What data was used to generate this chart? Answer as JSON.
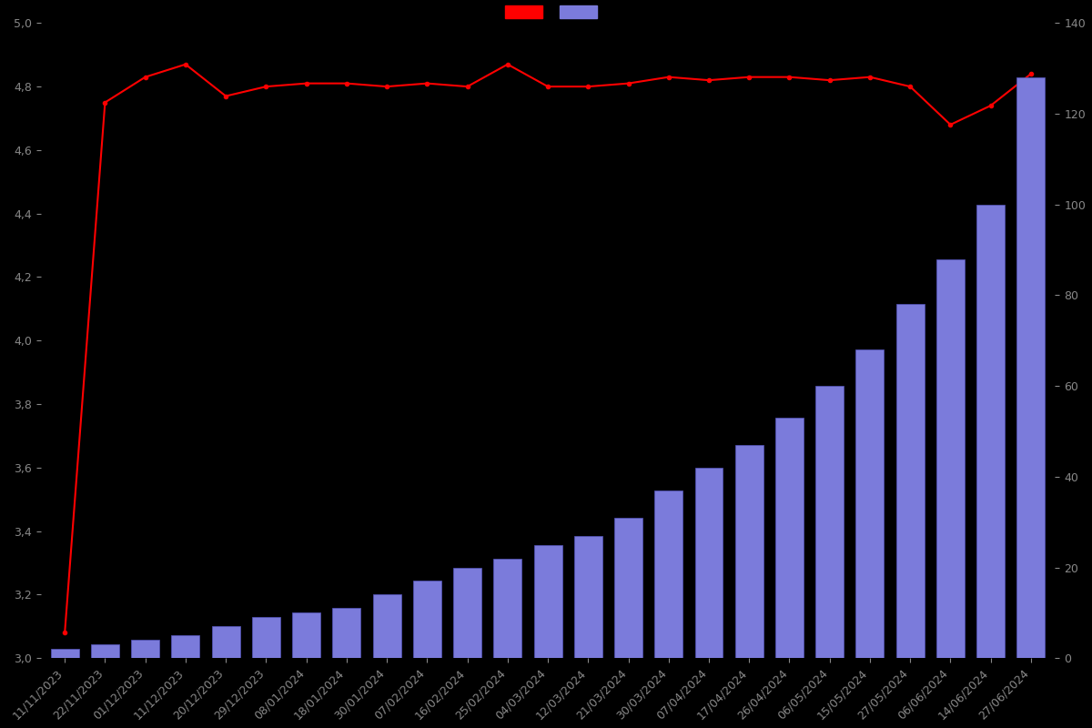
{
  "dates": [
    "11/11/2023",
    "22/11/2023",
    "01/12/2023",
    "11/12/2023",
    "20/12/2023",
    "29/12/2023",
    "08/01/2024",
    "18/01/2024",
    "30/01/2024",
    "07/02/2024",
    "16/02/2024",
    "25/02/2024",
    "04/03/2024",
    "12/03/2024",
    "21/03/2024",
    "30/03/2024",
    "07/04/2024",
    "17/04/2024",
    "26/04/2024",
    "06/05/2024",
    "15/05/2024",
    "27/05/2024",
    "06/06/2024",
    "14/06/2024",
    "27/06/2024"
  ],
  "bar_values": [
    2,
    3,
    4,
    5,
    7,
    9,
    10,
    11,
    14,
    17,
    20,
    22,
    25,
    27,
    31,
    37,
    42,
    47,
    53,
    60,
    68,
    78,
    88,
    100,
    128
  ],
  "line_values": [
    3.08,
    4.75,
    4.83,
    4.87,
    4.77,
    4.8,
    4.81,
    4.81,
    4.8,
    4.81,
    4.8,
    4.87,
    4.8,
    4.8,
    4.81,
    4.83,
    4.82,
    4.83,
    4.83,
    4.82,
    4.83,
    4.8,
    4.68,
    4.74,
    4.84
  ],
  "bar_color": "#7b7bdb",
  "bar_edge_color": "#5555bb",
  "line_color": "#ff0000",
  "background_color": "#000000",
  "text_color": "#888888",
  "left_ylim": [
    3.0,
    5.0
  ],
  "left_yticks": [
    3.0,
    3.2,
    3.4,
    3.6,
    3.8,
    4.0,
    4.2,
    4.4,
    4.6,
    4.8,
    5.0
  ],
  "right_ylim": [
    0,
    140
  ],
  "right_yticks": [
    0,
    20,
    40,
    60,
    80,
    100,
    120,
    140
  ],
  "tick_label_fontsize": 9,
  "line_marker": "o",
  "line_markersize": 3
}
